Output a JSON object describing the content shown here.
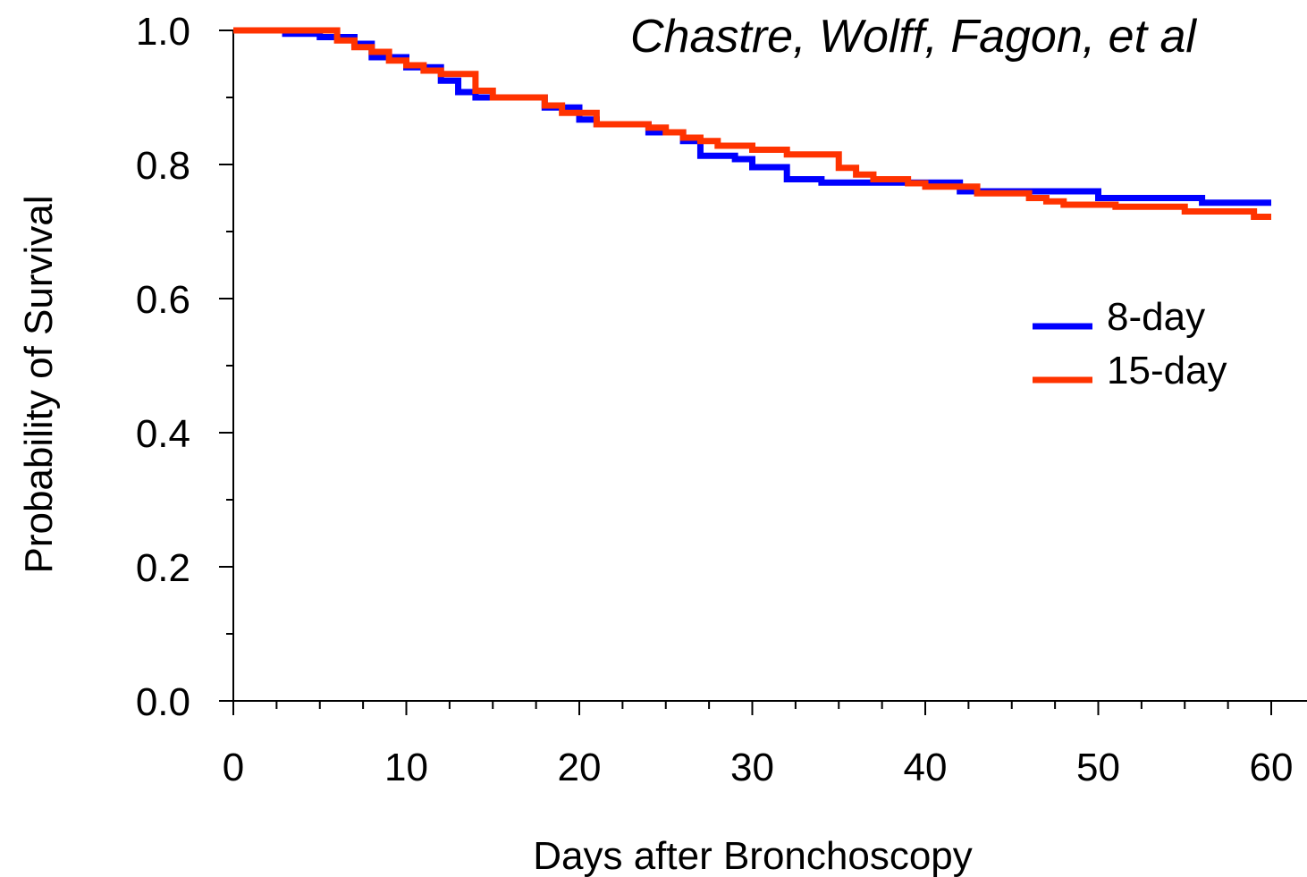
{
  "chart_data": {
    "type": "line",
    "step": true,
    "title": "Chastre, Wolff, Fagon, et al",
    "xlabel": "Days after Bronchoscopy",
    "ylabel": "Probability of Survival",
    "xlim": [
      0,
      60
    ],
    "ylim": [
      0.0,
      1.0
    ],
    "x_ticks": [
      "0",
      "10",
      "20",
      "30",
      "40",
      "50",
      "60"
    ],
    "y_ticks": [
      "0.0",
      "0.2",
      "0.4",
      "0.6",
      "0.8",
      "1.0"
    ],
    "grid": false,
    "legend_position": "right",
    "series": [
      {
        "name": "8-day",
        "color": "#0000ff",
        "x": [
          0,
          3,
          5,
          7,
          8,
          10,
          12,
          13,
          14,
          18,
          20,
          21,
          24,
          26,
          27,
          29,
          30,
          32,
          34,
          42,
          50,
          56,
          60
        ],
        "y": [
          1.0,
          0.995,
          0.99,
          0.98,
          0.96,
          0.945,
          0.925,
          0.908,
          0.9,
          0.885,
          0.867,
          0.86,
          0.848,
          0.835,
          0.813,
          0.808,
          0.796,
          0.778,
          0.773,
          0.76,
          0.75,
          0.743,
          0.743
        ]
      },
      {
        "name": "15-day",
        "color": "#ff3300",
        "x": [
          0,
          6,
          7,
          8,
          9,
          10,
          11,
          12,
          14,
          15,
          18,
          19,
          21,
          24,
          25,
          26,
          27,
          28,
          30,
          32,
          35,
          36,
          37,
          39,
          40,
          43,
          46,
          47,
          48,
          51,
          55,
          59,
          60
        ],
        "y": [
          1.0,
          0.985,
          0.975,
          0.968,
          0.955,
          0.948,
          0.94,
          0.935,
          0.91,
          0.9,
          0.888,
          0.877,
          0.86,
          0.855,
          0.848,
          0.84,
          0.835,
          0.828,
          0.822,
          0.815,
          0.795,
          0.785,
          0.778,
          0.772,
          0.767,
          0.757,
          0.75,
          0.745,
          0.74,
          0.737,
          0.73,
          0.722,
          0.722
        ]
      }
    ]
  }
}
